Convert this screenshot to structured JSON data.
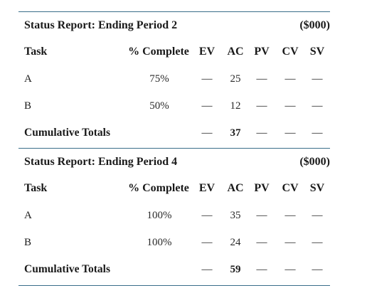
{
  "reports": [
    {
      "title": "Status Report: Ending Period 2",
      "unit": "($000)",
      "headers": {
        "task": "Task",
        "pct": "% Complete",
        "ev": "EV",
        "ac": "AC",
        "pv": "PV",
        "cv": "CV",
        "sv": "SV"
      },
      "rows": [
        {
          "task": "A",
          "pct": "75%",
          "ev": "—",
          "ac": "25",
          "pv": "—",
          "cv": "—",
          "sv": "—"
        },
        {
          "task": "B",
          "pct": "50%",
          "ev": "—",
          "ac": "12",
          "pv": "—",
          "cv": "—",
          "sv": "—"
        }
      ],
      "totals": {
        "label": "Cumulative Totals",
        "ev": "—",
        "ac": "37",
        "pv": "—",
        "cv": "—",
        "sv": "—"
      }
    },
    {
      "title": "Status Report: Ending Period 4",
      "unit": "($000)",
      "headers": {
        "task": "Task",
        "pct": "% Complete",
        "ev": "EV",
        "ac": "AC",
        "pv": "PV",
        "cv": "CV",
        "sv": "SV"
      },
      "rows": [
        {
          "task": "A",
          "pct": "100%",
          "ev": "—",
          "ac": "35",
          "pv": "—",
          "cv": "—",
          "sv": "—"
        },
        {
          "task": "B",
          "pct": "100%",
          "ev": "—",
          "ac": "24",
          "pv": "—",
          "cv": "—",
          "sv": "—"
        }
      ],
      "totals": {
        "label": "Cumulative Totals",
        "ev": "—",
        "ac": "59",
        "pv": "—",
        "cv": "—",
        "sv": "—"
      }
    }
  ]
}
